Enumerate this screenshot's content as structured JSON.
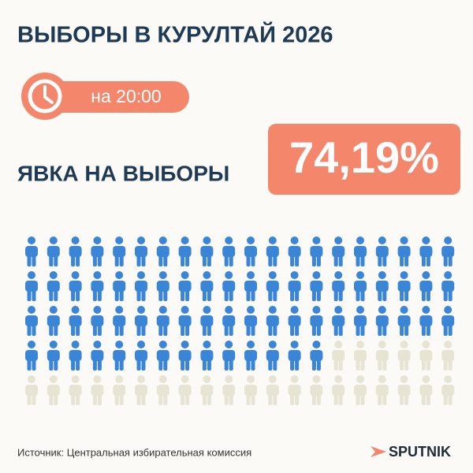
{
  "title": "ВЫБОРЫ В КУРУЛТАЙ 2026",
  "time_badge": "на 20:00",
  "turnout_label": "ЯВКА НА ВЫБОРЫ",
  "turnout": {
    "value": 74.19,
    "label": "74,19%"
  },
  "source": "Источник: Центральная избирательная комиссия",
  "logo": "SPUTNIK"
}
